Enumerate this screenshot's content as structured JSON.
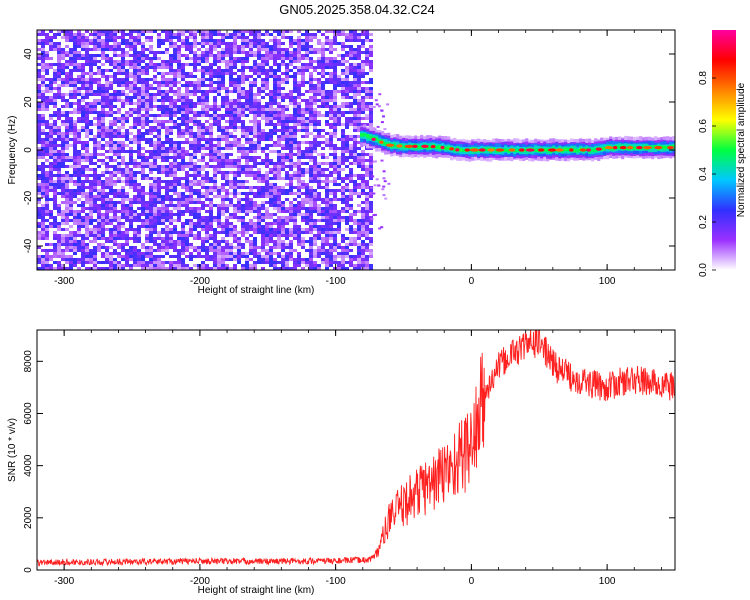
{
  "title": "GN05.2025.358.04.32.C24",
  "chart_data": [
    {
      "type": "heatmap",
      "xlabel": "Height of straight line (km)",
      "ylabel": "Frequency (Hz)",
      "xlim": [
        -320,
        150
      ],
      "ylim": [
        -50,
        50
      ],
      "x_ticks": [
        -300,
        -200,
        -100,
        0,
        100
      ],
      "y_ticks": [
        -40,
        -20,
        0,
        20,
        40
      ],
      "noise_region_x": [
        -320,
        -75
      ],
      "ridge": {
        "x": [
          -80,
          -70,
          -60,
          -50,
          -40,
          -30,
          -20,
          -10,
          0,
          10,
          20,
          30,
          40,
          50,
          60,
          70,
          80,
          90,
          100,
          110,
          120,
          130,
          140,
          150
        ],
        "y": [
          6,
          4,
          2,
          1.5,
          1.5,
          1.5,
          1,
          0,
          0,
          0,
          0,
          0,
          0,
          0,
          0,
          0,
          0,
          0,
          1,
          1,
          1,
          1,
          1,
          1
        ]
      },
      "colorbar": {
        "label": "Normalized spectral amplitude",
        "range": [
          0,
          1
        ],
        "ticks": [
          0.0,
          0.2,
          0.4,
          0.6,
          0.8
        ],
        "colors": [
          "#ffffff",
          "#9b30ff",
          "#3030ff",
          "#00c8ff",
          "#00ff40",
          "#ffff00",
          "#ff8000",
          "#ff0000",
          "#ff00a0"
        ]
      }
    },
    {
      "type": "line",
      "xlabel": "Height of straight line (km)",
      "ylabel": "SNR (10 * v/v)",
      "xlim": [
        -320,
        150
      ],
      "ylim": [
        0,
        9200
      ],
      "x_ticks": [
        -300,
        -200,
        -100,
        0,
        100
      ],
      "y_ticks": [
        0,
        2000,
        4000,
        6000,
        8000
      ],
      "color": "#ff2020",
      "series": [
        {
          "x": [
            -320,
            -300,
            -250,
            -200,
            -150,
            -100,
            -75,
            -70,
            -60,
            -50,
            -40,
            -30,
            -20,
            -10,
            0,
            10,
            20,
            30,
            40,
            50,
            60,
            70,
            80,
            90,
            100,
            110,
            120,
            130,
            140,
            150
          ],
          "values": [
            280,
            300,
            320,
            340,
            330,
            350,
            400,
            600,
            2000,
            2500,
            3000,
            3300,
            3700,
            4200,
            4800,
            6700,
            7800,
            8300,
            8600,
            8800,
            7900,
            7500,
            7300,
            7100,
            7000,
            7200,
            7300,
            7200,
            7100,
            7000
          ]
        }
      ]
    }
  ]
}
